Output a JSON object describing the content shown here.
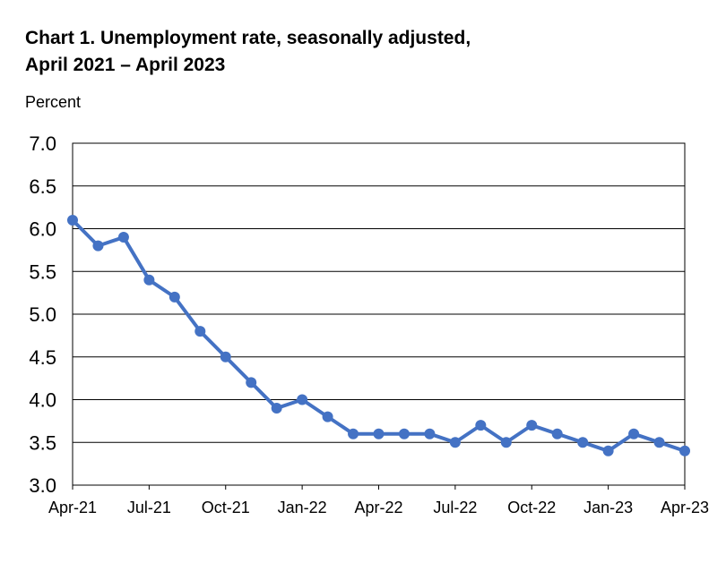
{
  "chart_data": {
    "type": "line",
    "title_line1": "Chart 1. Unemployment rate, seasonally adjusted,",
    "title_line2": "April 2021 – April 2023",
    "xlabel": "",
    "ylabel": "Percent",
    "ylim": [
      3.0,
      7.0
    ],
    "yticks": [
      "7.0",
      "6.5",
      "6.0",
      "5.5",
      "5.0",
      "4.5",
      "4.0",
      "3.5",
      "3.0"
    ],
    "ytick_values": [
      7.0,
      6.5,
      6.0,
      5.5,
      5.0,
      4.5,
      4.0,
      3.5,
      3.0
    ],
    "xticks": [
      "Apr-21",
      "Jul-21",
      "Oct-21",
      "Jan-22",
      "Apr-22",
      "Jul-22",
      "Oct-22",
      "Jan-23",
      "Apr-23"
    ],
    "xtick_indices": [
      0,
      3,
      6,
      9,
      12,
      15,
      18,
      21,
      24
    ],
    "grid": true,
    "legend": "none",
    "series": [
      {
        "color": "#4472C4",
        "values": [
          6.1,
          5.8,
          5.9,
          5.4,
          5.2,
          4.8,
          4.5,
          4.2,
          3.9,
          4.0,
          3.8,
          3.6,
          3.6,
          3.6,
          3.6,
          3.5,
          3.7,
          3.5,
          3.7,
          3.6,
          3.5,
          3.4,
          3.6,
          3.5,
          3.4
        ]
      }
    ]
  }
}
